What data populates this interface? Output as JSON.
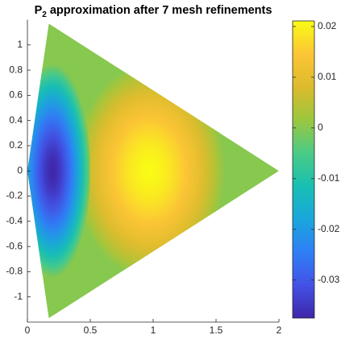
{
  "chart_data": {
    "type": "heatmap",
    "title": {
      "base": "P",
      "subscript": "2",
      "rest": "approximation after 7 mesh refinements"
    },
    "xlim": [
      0,
      2
    ],
    "ylim": [
      -1.2,
      1.2
    ],
    "xticks": [
      0,
      0.5,
      1,
      1.5,
      2
    ],
    "yticks": [
      -1,
      -0.8,
      -0.6,
      -0.4,
      -0.2,
      0,
      0.2,
      0.4,
      0.6,
      0.8,
      1
    ],
    "domain": [
      [
        0.17,
        1.17
      ],
      [
        0,
        0
      ],
      [
        0.17,
        -1.17
      ],
      [
        2,
        0
      ]
    ],
    "base_value": 0,
    "extrema": [
      {
        "x": 0.97,
        "y": 0,
        "value": 0.0211,
        "rx": 0.6,
        "ry": 0.85
      },
      {
        "x": 0.2,
        "y": 0,
        "value": -0.0375,
        "rx": 0.3,
        "ry": 0.85
      }
    ],
    "clim": [
      -0.0375,
      0.0211
    ],
    "cticks": [
      -0.03,
      -0.02,
      -0.01,
      0,
      0.01,
      0.02
    ],
    "colormap": [
      "#3e26a8",
      "#4352e6",
      "#2f7ff6",
      "#1aa6db",
      "#18bfb2",
      "#4bcb86",
      "#9ac73e",
      "#dcbb2c",
      "#fcc536",
      "#f9fb15"
    ]
  }
}
